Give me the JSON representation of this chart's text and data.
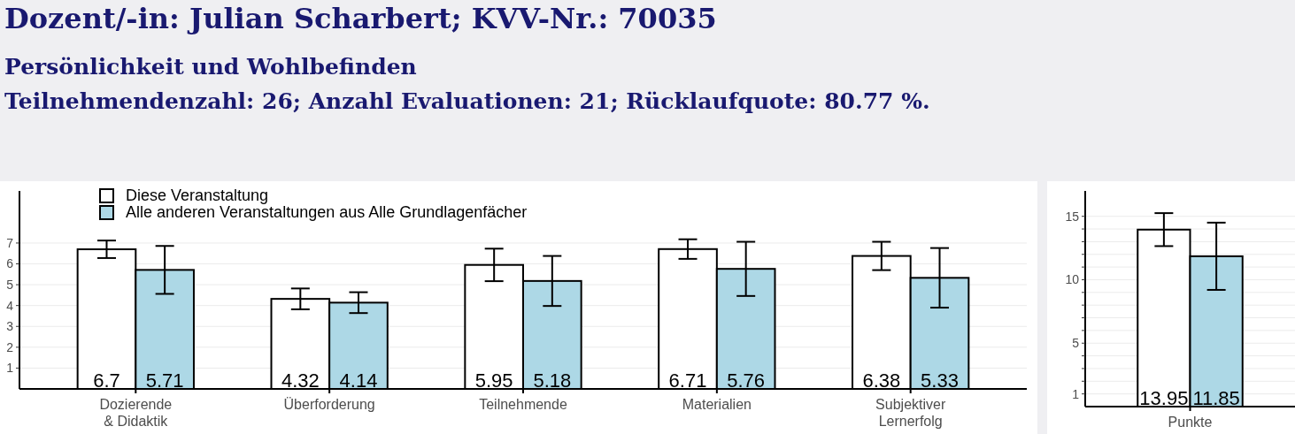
{
  "chart_data": [
    {
      "type": "bar",
      "title": "Dozent/-in: Julian Scharbert; KVV-Nr.: 70035",
      "subtitle": "Persönlichkeit und Wohlbefinden",
      "annotations": [
        "Teilnehmendenzahl: 26; Anzahl Evaluationen: 21; Rücklaufquote: 80.77 %."
      ],
      "categories": [
        "Dozierende\n& Didaktik",
        "Überforderung",
        "Teilnehmende",
        "Materialien",
        "Subjektiver\nLernerfolg"
      ],
      "series": [
        {
          "name": "Diese Veranstaltung",
          "color": "#ffffff",
          "values": [
            6.7,
            4.32,
            5.95,
            6.71,
            6.38
          ],
          "errors": [
            0.42,
            0.5,
            0.78,
            0.47,
            0.68
          ]
        },
        {
          "name": "Alle anderen Veranstaltungen aus Alle Grundlagenfächer",
          "color": "#add8e6",
          "values": [
            5.71,
            4.14,
            5.18,
            5.76,
            5.33
          ],
          "errors": [
            1.15,
            0.5,
            1.2,
            1.3,
            1.43
          ]
        }
      ],
      "ylim": [
        0,
        9.5
      ],
      "yticks": [
        1,
        2,
        3,
        4,
        5,
        6,
        7
      ],
      "grid": "y",
      "legend": "top left",
      "data_labels": true
    },
    {
      "type": "bar",
      "categories": [
        "Punkte"
      ],
      "series": [
        {
          "color": "#ffffff",
          "values": [
            13.95
          ],
          "errors": [
            1.3
          ]
        },
        {
          "color": "#add8e6",
          "values": [
            11.85
          ],
          "errors": [
            2.65
          ]
        }
      ],
      "ylim": [
        0,
        17
      ],
      "yticks": [
        1,
        {
          "value": 2,
          "label": null
        },
        {
          "value": 3,
          "label": null
        },
        {
          "value": 4,
          "label": null
        },
        5,
        {
          "value": 6,
          "label": null
        },
        {
          "value": 7,
          "label": null
        },
        {
          "value": 8,
          "label": null
        },
        {
          "value": 9,
          "label": null
        },
        10,
        {
          "value": 11,
          "label": null
        },
        {
          "value": 12,
          "label": null
        },
        {
          "value": 13,
          "label": null
        },
        {
          "value": 14,
          "label": null
        },
        15
      ],
      "grid": "y",
      "data_labels": true
    }
  ]
}
